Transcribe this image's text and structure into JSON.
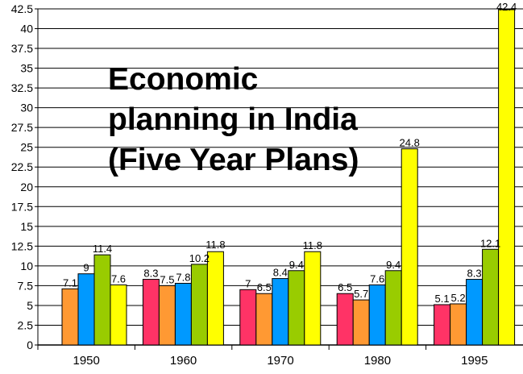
{
  "chart_data": {
    "type": "bar",
    "title": "Economic planning in India (Five Year Plans)",
    "title_lines": [
      "Economic",
      "planning in India",
      "(Five Year Plans)"
    ],
    "categories": [
      "1950",
      "1960",
      "1970",
      "1980",
      "1995"
    ],
    "series": [
      {
        "color": "#ff3366",
        "values": [
          null,
          8.3,
          7,
          6.5,
          5.1
        ],
        "labels": [
          "",
          "8.3",
          "7",
          "6.5",
          "5.1"
        ]
      },
      {
        "color": "#ff9933",
        "values": [
          7.1,
          7.5,
          6.5,
          5.7,
          5.2
        ],
        "labels": [
          "7.1",
          "7.5",
          "6.5",
          "5.7",
          "5.2"
        ]
      },
      {
        "color": "#0099ff",
        "values": [
          9,
          7.8,
          8.4,
          7.6,
          8.3
        ],
        "labels": [
          "9",
          "7.8",
          "8.4",
          "7.6",
          "8.3"
        ]
      },
      {
        "color": "#99cc00",
        "values": [
          11.4,
          10.2,
          9.4,
          9.4,
          12.1
        ],
        "labels": [
          "11.4",
          "10.2",
          "9.4",
          "9.4",
          "12.1"
        ]
      },
      {
        "color": "#ffff00",
        "values": [
          7.6,
          11.8,
          11.8,
          24.8,
          42.4
        ],
        "labels": [
          "7.6",
          "11.8",
          "11.8",
          "24.8",
          "42.4"
        ]
      }
    ],
    "yticks": [
      "0",
      "2.5",
      "5",
      "7.5",
      "10",
      "12.5",
      "15",
      "17.5",
      "20",
      "22.5",
      "25",
      "27.5",
      "30",
      "32.5",
      "35",
      "37.5",
      "40",
      "42.5"
    ],
    "ylim": [
      0,
      42.5
    ],
    "grid": true,
    "xlabel": "",
    "ylabel": ""
  }
}
